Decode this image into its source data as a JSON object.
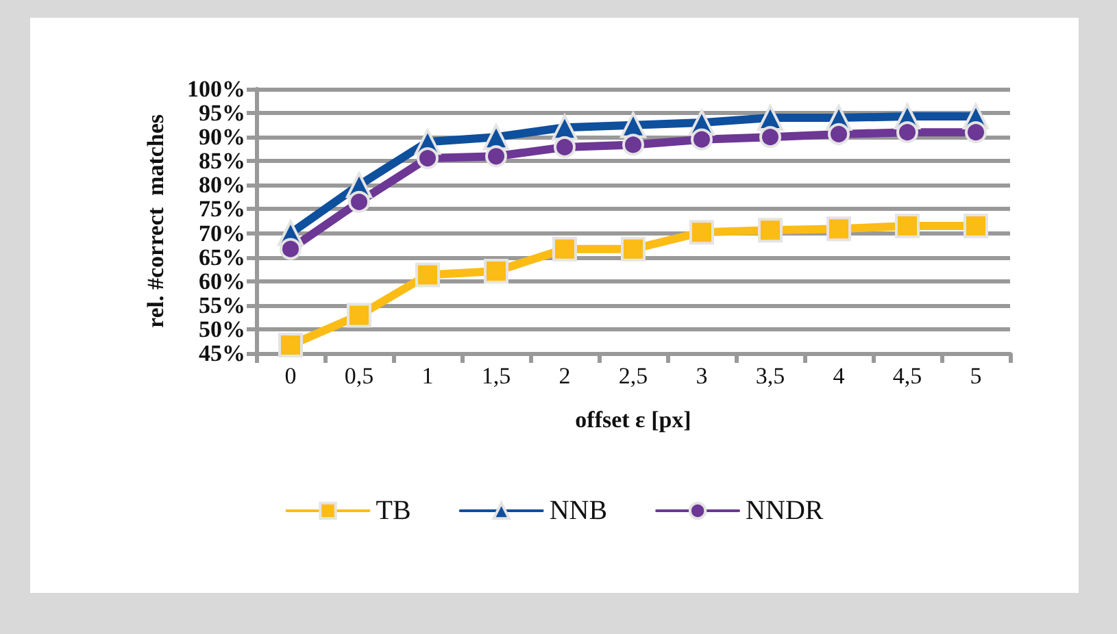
{
  "chart_data": {
    "type": "line",
    "xlabel": "offset ε [px]",
    "ylabel": "rel. #correct  matches",
    "categories": [
      "0",
      "0,5",
      "1",
      "1,5",
      "2",
      "2,5",
      "3",
      "3,5",
      "4",
      "4,5",
      "5"
    ],
    "series": [
      {
        "name": "TB",
        "color": "#fbbc16",
        "marker": "square",
        "values": [
          46.7,
          52.9,
          61.3,
          62.1,
          66.7,
          66.7,
          70.2,
          70.6,
          70.9,
          71.5,
          71.5
        ]
      },
      {
        "name": "NNB",
        "color": "#0e4f9e",
        "marker": "triangle",
        "values": [
          70,
          80,
          89,
          90,
          92,
          92.5,
          93,
          94,
          94,
          94.3,
          94.3
        ]
      },
      {
        "name": "NNDR",
        "color": "#6d3795",
        "marker": "circle",
        "values": [
          66.7,
          76.5,
          85.6,
          86,
          87.9,
          88.4,
          89.5,
          90,
          90.6,
          91,
          91
        ]
      }
    ],
    "ylim": [
      45,
      100
    ],
    "yticks": [
      {
        "value": 45,
        "label": "45%"
      },
      {
        "value": 50,
        "label": "50%"
      },
      {
        "value": 55,
        "label": "55%"
      },
      {
        "value": 60,
        "label": "60%"
      },
      {
        "value": 65,
        "label": "65%"
      },
      {
        "value": 70,
        "label": "70%"
      },
      {
        "value": 75,
        "label": "75%"
      },
      {
        "value": 80,
        "label": "80%"
      },
      {
        "value": 85,
        "label": "85%"
      },
      {
        "value": 90,
        "label": "90%"
      },
      {
        "value": 95,
        "label": "95%"
      },
      {
        "value": 100,
        "label": "100%"
      }
    ],
    "grid": "y",
    "legend": "bottom"
  }
}
